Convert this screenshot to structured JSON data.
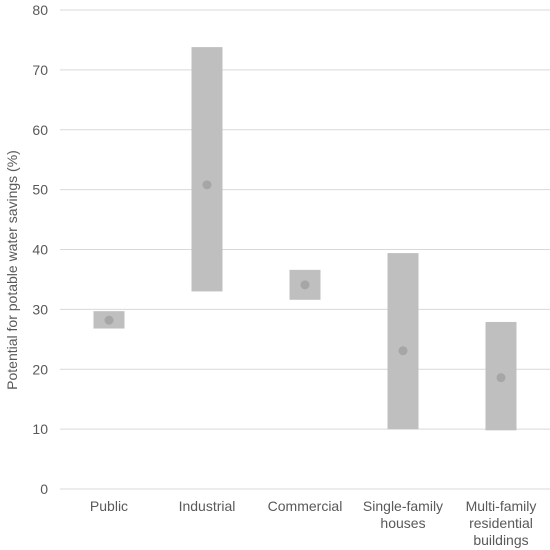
{
  "chart_data": {
    "type": "bar",
    "subtype": "floating-range-with-point",
    "title": "",
    "xlabel": "",
    "ylabel": "Potential for potable water savings (%)",
    "ylim": [
      0,
      80
    ],
    "yticks": [
      0,
      10,
      20,
      30,
      40,
      50,
      60,
      70,
      80
    ],
    "grid": true,
    "legend": "none",
    "categories": [
      "Public",
      "Industrial",
      "Commercial",
      "Single-family houses",
      "Multi-family residential buildings"
    ],
    "category_label_lines": [
      [
        "Public"
      ],
      [
        "Industrial"
      ],
      [
        "Commercial"
      ],
      [
        "Single-family",
        "houses"
      ],
      [
        "Multi-family",
        "residential",
        "buildings"
      ]
    ],
    "series": [
      {
        "name": "",
        "role": "min",
        "values": [
          26.8,
          33.0,
          31.6,
          10.0,
          9.8
        ]
      },
      {
        "name": "",
        "role": "max",
        "values": [
          29.7,
          73.8,
          36.6,
          39.4,
          27.9
        ]
      },
      {
        "name": "",
        "role": "average",
        "values": [
          28.2,
          50.8,
          34.1,
          23.1,
          18.6
        ]
      }
    ],
    "colors": {
      "range_bar": "#bfbfbf",
      "point": "#a6a6a6",
      "grid": "#d9d9d9",
      "text": "#595959",
      "background": "#ffffff"
    }
  }
}
